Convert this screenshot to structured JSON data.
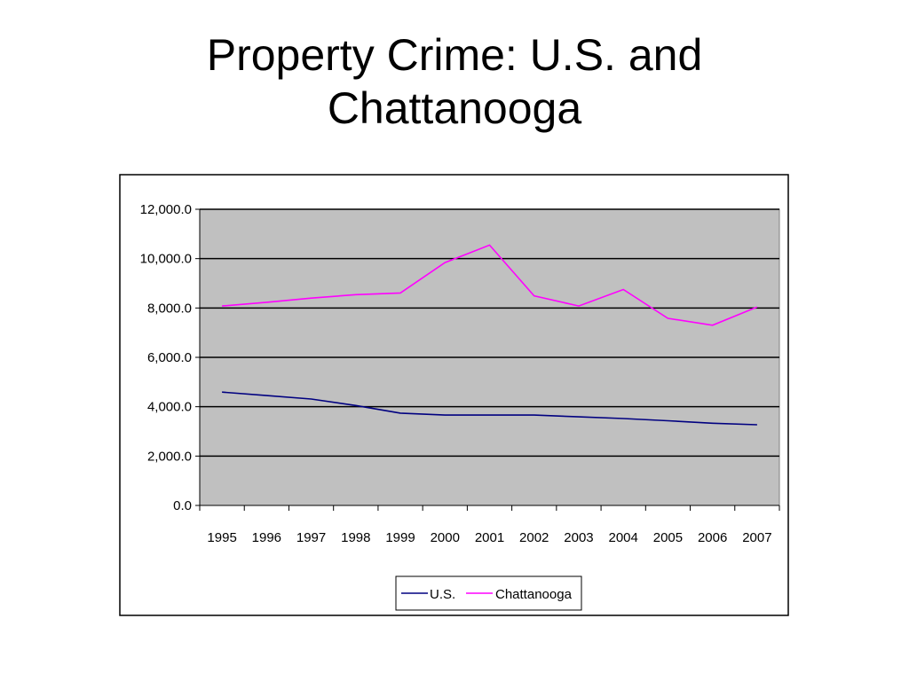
{
  "slide": {
    "title_line1": "Property Crime: U.S. and",
    "title_line2": "Chattanooga"
  },
  "colors": {
    "plot_background": "#c0c0c0",
    "gridline": "#000000",
    "us": "#000080",
    "chattanooga": "#ff00ff"
  },
  "chart_data": {
    "type": "line",
    "title": "",
    "xlabel": "",
    "ylabel": "",
    "categories": [
      "1995",
      "1996",
      "1997",
      "1998",
      "1999",
      "2000",
      "2001",
      "2002",
      "2003",
      "2004",
      "2005",
      "2006",
      "2007"
    ],
    "series": [
      {
        "name": "U.S.",
        "color": "#000080",
        "values": [
          4590,
          4450,
          4310,
          4050,
          3740,
          3660,
          3660,
          3660,
          3590,
          3520,
          3430,
          3330,
          3270
        ]
      },
      {
        "name": "Chattanooga",
        "color": "#ff00ff",
        "values": [
          8080,
          8230,
          8400,
          8540,
          8610,
          9840,
          10550,
          8490,
          8080,
          8750,
          7580,
          7300,
          8040
        ]
      }
    ],
    "ylim": [
      0,
      12000
    ],
    "yticks": [
      0,
      2000,
      4000,
      6000,
      8000,
      10000,
      12000
    ],
    "ytick_labels": [
      "0.0",
      "2,000.0",
      "4,000.0",
      "6,000.0",
      "8,000.0",
      "10,000.0",
      "12,000.0"
    ],
    "grid": true,
    "legend": "bottom"
  }
}
